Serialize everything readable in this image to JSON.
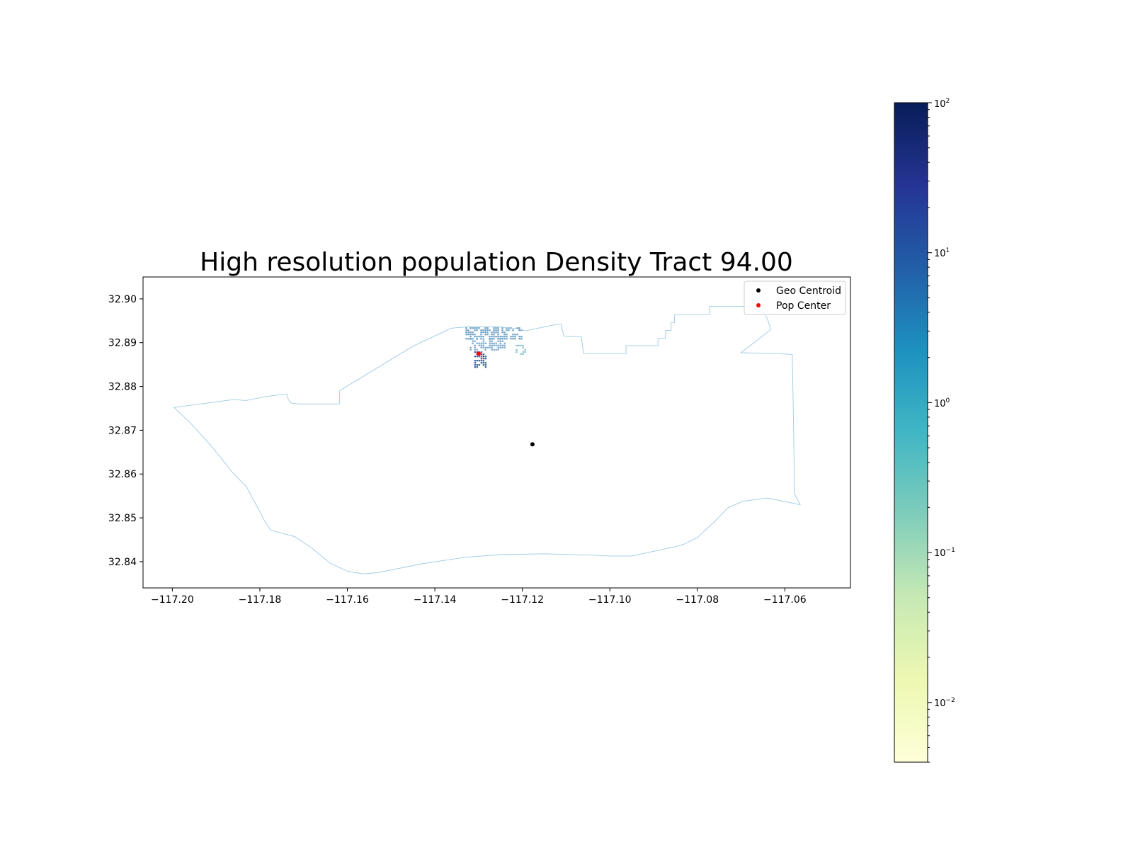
{
  "figure": {
    "title": "High resolution population Density Tract 94.00"
  },
  "axes": {
    "x_ticks": [
      "−117.20",
      "−117.18",
      "−117.16",
      "−117.14",
      "−117.12",
      "−117.10",
      "−117.08",
      "−117.06"
    ],
    "y_ticks": [
      "32.90",
      "32.89",
      "32.88",
      "32.87",
      "32.86",
      "32.85",
      "32.84"
    ]
  },
  "legend": {
    "items": [
      {
        "label": "Geo Centroid",
        "color": "#000000"
      },
      {
        "label": "Pop Center",
        "color": "#ff0000"
      }
    ]
  },
  "colorbar": {
    "colormap": "YlGnBu",
    "scale": "log",
    "labels": [
      {
        "base": "10",
        "exp": "2"
      },
      {
        "base": "10",
        "exp": "1"
      },
      {
        "base": "10",
        "exp": "0"
      },
      {
        "base": "10",
        "exp": "−1"
      },
      {
        "base": "10",
        "exp": "−2"
      }
    ]
  },
  "chart_data": {
    "type": "map",
    "title": "High resolution population Density Tract 94.00",
    "x_axis": {
      "unit": "longitude",
      "ticks": [
        -117.2,
        -117.18,
        -117.16,
        -117.14,
        -117.12,
        -117.1,
        -117.08,
        -117.06
      ],
      "range": [
        -117.2067,
        -117.045
      ]
    },
    "y_axis": {
      "unit": "latitude",
      "ticks": [
        32.84,
        32.85,
        32.86,
        32.87,
        32.88,
        32.89,
        32.9
      ],
      "range": [
        32.834,
        32.905
      ]
    },
    "colorbar": {
      "scale": "log",
      "range": [
        0.004,
        100
      ],
      "colormap": "YlGnBu"
    },
    "boundary_color": "#9ecae1",
    "points": [
      {
        "name": "Geo Centroid",
        "lon": -117.1177,
        "lat": 32.8668,
        "color": "#000000"
      },
      {
        "name": "Pop Center",
        "lon": -117.13,
        "lat": 32.8875,
        "color": "#ff0000"
      }
    ],
    "boundary": [
      [
        -117.1996,
        32.8752
      ],
      [
        -117.186,
        32.877
      ],
      [
        -117.1832,
        32.8768
      ],
      [
        -117.1785,
        32.8777
      ],
      [
        -117.1738,
        32.8783
      ],
      [
        -117.1735,
        32.877
      ],
      [
        -117.1728,
        32.8762
      ],
      [
        -117.1712,
        32.876
      ],
      [
        -117.1618,
        32.876
      ],
      [
        -117.1618,
        32.879
      ],
      [
        -117.145,
        32.8892
      ],
      [
        -117.1362,
        32.8933
      ],
      [
        -117.1327,
        32.8936
      ],
      [
        -117.125,
        32.8936
      ],
      [
        -117.1213,
        32.8932
      ],
      [
        -117.1193,
        32.8927
      ],
      [
        -117.113,
        32.894
      ],
      [
        -117.1112,
        32.8943
      ],
      [
        -117.1105,
        32.8915
      ],
      [
        -117.1065,
        32.8913
      ],
      [
        -117.106,
        32.8875
      ],
      [
        -117.0963,
        32.8875
      ],
      [
        -117.0963,
        32.8893
      ],
      [
        -117.089,
        32.8893
      ],
      [
        -117.089,
        32.891
      ],
      [
        -117.0873,
        32.891
      ],
      [
        -117.0873,
        32.8928
      ],
      [
        -117.086,
        32.8928
      ],
      [
        -117.086,
        32.8946
      ],
      [
        -117.0852,
        32.8946
      ],
      [
        -117.0852,
        32.8964
      ],
      [
        -117.0772,
        32.8964
      ],
      [
        -117.0772,
        32.8983
      ],
      [
        -117.068,
        32.8983
      ],
      [
        -117.065,
        32.8972
      ],
      [
        -117.064,
        32.8955
      ],
      [
        -117.0632,
        32.893
      ],
      [
        -117.07,
        32.8877
      ],
      [
        -117.062,
        32.8875
      ],
      [
        -117.0583,
        32.8873
      ],
      [
        -117.058,
        32.871
      ],
      [
        -117.0578,
        32.8555
      ],
      [
        -117.0565,
        32.853
      ],
      [
        -117.064,
        32.8545
      ],
      [
        -117.0695,
        32.8538
      ],
      [
        -117.073,
        32.8523
      ],
      [
        -117.076,
        32.8492
      ],
      [
        -117.08,
        32.8455
      ],
      [
        -117.083,
        32.844
      ],
      [
        -117.0855,
        32.8433
      ],
      [
        -117.095,
        32.8413
      ],
      [
        -117.1,
        32.8413
      ],
      [
        -117.105,
        32.8415
      ],
      [
        -117.115,
        32.8418
      ],
      [
        -117.125,
        32.8416
      ],
      [
        -117.133,
        32.841
      ],
      [
        -117.143,
        32.8395
      ],
      [
        -117.153,
        32.8375
      ],
      [
        -117.1563,
        32.8372
      ],
      [
        -117.16,
        32.8378
      ],
      [
        -117.164,
        32.8397
      ],
      [
        -117.168,
        32.843
      ],
      [
        -117.172,
        32.8457
      ],
      [
        -117.176,
        32.8468
      ],
      [
        -117.1775,
        32.8472
      ],
      [
        -117.179,
        32.8495
      ],
      [
        -117.183,
        32.857
      ],
      [
        -117.1862,
        32.8603
      ],
      [
        -117.191,
        32.8663
      ],
      [
        -117.196,
        32.8718
      ],
      [
        -117.1996,
        32.8752
      ]
    ],
    "density_clusters": [
      {
        "lon_min": -117.133,
        "lon_max": -117.12,
        "lat_min": 32.891,
        "lat_max": 32.8935,
        "color": "#6a9fc9"
      },
      {
        "lon_min": -117.132,
        "lon_max": -117.124,
        "lat_min": 32.8882,
        "lat_max": 32.891,
        "color": "#7aa9cf"
      },
      {
        "lon_min": -117.1215,
        "lon_max": -117.1195,
        "lat_min": 32.8875,
        "lat_max": 32.8895,
        "color": "#8cc3d6"
      },
      {
        "lon_min": -117.131,
        "lon_max": -117.1285,
        "lat_min": 32.8845,
        "lat_max": 32.888,
        "color": "#3a5fa3"
      }
    ]
  }
}
